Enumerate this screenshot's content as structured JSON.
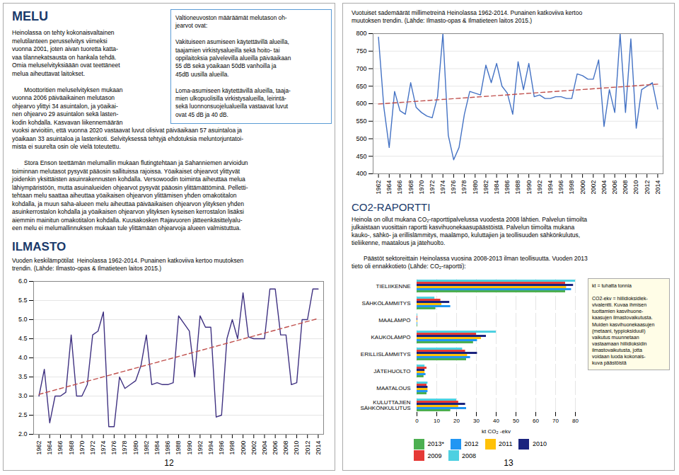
{
  "chart_data": [
    {
      "type": "line",
      "title": "Vuoden keskilämpötilat  Heinolassa 1962-2014. Punainen katkoviiva kertoo muutoksen\ntrendin. (Lähde: Ilmasto-opas & Ilmatieteen laitos 2015.)",
      "annotations": [
        "MELU",
        "Heinolassa on tehty kokonaisvaltainen\nmelutilanteen perusselvitys viimeksi\nvuonna 2001, joten aivan tuoretta katta-\nvaa tilannekatsausta on hankala tehdä.\nOmia meluselvityksiäään ovat teettäneet\nmelua aiheuttavat laitokset.\n​\n  Moottoritien meluselvityksen mukaan\nvuonna 2006 päiväaikainen melutason\nohjearvo ylittyi 34 asuintalon, ja yöaikai-\nnen ohjearvo 29 asuintalon sekä lasten-\nkodin kohdalla. Kasvavan liikennemäärän\nvuoksi arvioitiin, että vuonna 2020 vastaavat luvut olisivat päiväaikaan 57 asuintaloa ja\nyöaikaan 33 asuintaloa ja lastenkoti. Selvityksessä tehtyjä ehdotuksia meluntorjuntatoi-\nmista ei suurelta osin ole vielä toteutettu.\n​\n  Stora Enson teettämän melumallin mukaan flutingtehtaan ja Sahanniemen arvioidun\ntoiminnan melutasot pysyvät pääosin sallituissa rajoissa. Yöaikaiset ohjearvot ylittyvät\njoidenkin yksittäisten asuinrakennusten kohdalla. ​Versowoodin toiminta aiheuttaa melua\nlähiympäristöön, mutta asuinalueiden ohjearvot pysyvät pääosin ylittämättöminä. Pelletti-\ntehtaan melu saattaa aiheuttaa yöaikaisen ohjearvon ylittämisen yhden omakotitalon\nkohdalla, ja muun saha-alueen melu aiheuttaa päiväaikaisen ohjearvon ylityksen yhden\nasuinkerrostalon kohdalla ja yöaikaisen ohjearvon ylityksen kyseisen kerrostalon lisäksi\naiemmin mainitun omakotitalon kohdalla. ​Kuusakosken Rajavuoren jätteenkäsittelyalu-\neen melu ei melumallinnuksen mukaan tule ylittämään ohjearvoja alueen valmistuttua.",
        "Valtioneuvoston määräämät melutason oh-\njearvot ovat:\n​\nVakituiseen asumiseen käytettävillä alueilla,\ntaajamien virkistysalueilla sekä hoito- tai\noppilaitoksia palvelevilla alueilla päiväaikaan\n55 dB sekä yöaikaan 50dB vanhoilla ja\n45dB uusilla alueilla.\n​\nLoma-asumiseen käytettävillä alueilla, taaja-\nmien ulkopuolisilla virkistysalueilla, leirintä-\nsekä luonnonsuojelualueilla vastaavat luvut\novat 45 dB ja 40 dB.",
        "ILMASTO",
        "12"
      ],
      "x": [
        1962,
        1963,
        1964,
        1965,
        1966,
        1967,
        1968,
        1969,
        1970,
        1971,
        1972,
        1973,
        1974,
        1975,
        1976,
        1977,
        1978,
        1979,
        1980,
        1981,
        1982,
        1983,
        1984,
        1985,
        1986,
        1987,
        1988,
        1989,
        1990,
        1991,
        1992,
        1993,
        1994,
        1995,
        1996,
        1997,
        1998,
        1999,
        2000,
        2001,
        2002,
        2003,
        2004,
        2005,
        2006,
        2007,
        2008,
        2009,
        2010,
        2011,
        2012,
        2013,
        2014
      ],
      "series": [
        {
          "color": "#3F3181",
          "values": [
            3.0,
            3.7,
            2.3,
            3.0,
            3.0,
            3.1,
            4.6,
            3.0,
            3.0,
            3.3,
            4.6,
            4.7,
            5.2,
            2.2,
            2.2,
            3.5,
            3.2,
            3.3,
            3.4,
            3.8,
            4.6,
            3.3,
            3.35,
            3.3,
            3.3,
            3.35,
            5.1,
            4.9,
            4.7,
            3.5,
            5.1,
            4.8,
            4.8,
            2.45,
            2.5,
            4.5,
            5.0,
            4.5,
            5.7,
            4.55,
            4.5,
            4.5,
            4.5,
            5.8,
            5.8,
            4.6,
            4.6,
            3.3,
            3.35,
            5.0,
            5.0,
            5.8,
            5.8
          ]
        },
        {
          "color": "#C0504D",
          "line_style": "dashed",
          "x": [
            1962,
            2014
          ],
          "values": [
            3.0447,
            5.0289
          ]
        }
      ],
      "xlim": [
        1961,
        2015
      ],
      "xticks": [
        1962,
        1964,
        1966,
        1968,
        1970,
        1972,
        1974,
        1976,
        1978,
        1980,
        1982,
        1984,
        1986,
        1988,
        1990,
        1992,
        1994,
        1996,
        1998,
        2000,
        2002,
        2004,
        2006,
        2008,
        2010,
        2012,
        2014
      ],
      "ylim": [
        2.0,
        6.0
      ],
      "yticks": [
        {
          "value": 2.0,
          "label": "2.0"
        },
        {
          "value": 2.5,
          "label": "2.5"
        },
        {
          "value": 3.0,
          "label": "3.0"
        },
        {
          "value": 3.5,
          "label": "3.5"
        },
        {
          "value": 4.0,
          "label": "4.0"
        },
        {
          "value": 4.5,
          "label": "4.5"
        },
        {
          "value": 5.0,
          "label": "5.0"
        },
        {
          "value": 5.5,
          "label": "5.5"
        },
        {
          "value": 6.0,
          "label": "6.0"
        }
      ],
      "grid": "y"
    },
    {
      "type": "line",
      "title": "Vuotuiset sademäärät millimetreinä Heinolassa 1962-2014. Punainen katkoviiva kertoo\nmuutoksen trendin. (Lähde: Ilmasto-opas & Ilmatieteen laitos 2015.)",
      "annotations": [
        "13"
      ],
      "x": [
        1962,
        1963,
        1964,
        1965,
        1966,
        1967,
        1968,
        1969,
        1970,
        1971,
        1972,
        1973,
        1974,
        1975,
        1976,
        1977,
        1978,
        1979,
        1980,
        1981,
        1982,
        1983,
        1984,
        1985,
        1986,
        1987,
        1988,
        1989,
        1990,
        1991,
        1992,
        1993,
        1994,
        1995,
        1996,
        1997,
        1998,
        1999,
        2000,
        2001,
        2002,
        2003,
        2004,
        2005,
        2006,
        2007,
        2008,
        2009,
        2010,
        2011,
        2012,
        2013,
        2014
      ],
      "series": [
        {
          "color": "#4472C4",
          "values": [
            790,
            590,
            475,
            635,
            580,
            570,
            660,
            590,
            575,
            565,
            560,
            620,
            800,
            510,
            440,
            475,
            570,
            635,
            630,
            625,
            710,
            660,
            715,
            650,
            630,
            570,
            720,
            640,
            715,
            620,
            625,
            615,
            615,
            620,
            620,
            615,
            615,
            685,
            680,
            670,
            670,
            725,
            535,
            640,
            575,
            800,
            575,
            785,
            530,
            640,
            650,
            660,
            585
          ]
        },
        {
          "color": "#C0504D",
          "line_style": "dashed",
          "x": [
            1962,
            2014
          ],
          "values": [
            599.1719,
            655.7337
          ]
        }
      ],
      "xlim": [
        1961,
        2015
      ],
      "xticks": [
        1962,
        1964,
        1966,
        1968,
        1970,
        1972,
        1974,
        1976,
        1978,
        1980,
        1982,
        1984,
        1986,
        1988,
        1990,
        1992,
        1994,
        1996,
        1998,
        2000,
        2002,
        2004,
        2006,
        2008,
        2010,
        2012,
        2014
      ],
      "ylim": [
        400,
        800
      ],
      "yticks": [
        400,
        450,
        500,
        550,
        600,
        650,
        700,
        750,
        800
      ],
      "grid": "y"
    },
    {
      "type": "bar",
      "orientation": "horizontal",
      "title": "CO2-RAPORTTI",
      "subtitle": "Heinola on ollut mukana CO₂-raporttipalvelussa vuodesta 2008 lähtien. Palvelun tiimoilta\njulkaistaan vuosittain raportti kasvihuonekaasupäästöistä. Palvelun tiimoilta mukana\nkauko-, sähkö- ja erillislämmitys, maalämpö, kuluttajien ja teollisuuden sähkönkulutus,\ntieliikenne, maatalous ja jätehuolto.\n​\n  Päästöt sektoreittain Heinolassa vuosina 2008-2013 ilman teollisuutta. Vuoden 2013\ntieto oli ennakkotieto (Lähde: CO₂-raportti):",
      "xlabel": "kt CO₂ -ekv",
      "annotations": [
        "kt = tuhatta tonnia\n​\nCO2-ekv = hiilidioksidiek-\nvivalentti. Kuvaa ihmisen\ntuottamien kasvihuone-\nkaasujen ilmastovaikutusta.\nMuiden kasvihuonekaasujen\n(metaani, typpioksiduuli)\nvaikutus muunnetaan\nvastaamaan hiilidioksidin\nilmastovaikutusta, jotta\nvoidaan luoda kokonais-\nkuva päästöistä"
      ],
      "categories": [
        "KULUTTAJIEN\nSÄHKÖNKULUTUS",
        "MAATALOUS",
        "JÄTEHUOLTO",
        "ERILLISLÄMMITYS",
        "KAUKOLÄMPÖ",
        "MAALÄMPÖ",
        "SÄHKÖLÄMMITYS",
        "TIELIIKENNE"
      ],
      "series": [
        {
          "name": "2013*",
          "color": "#4CAF50",
          "values": [
            17.0,
            5.0,
            3.5,
            25.0,
            28.5,
            0.3,
            9.5,
            75.0
          ]
        },
        {
          "name": "2012",
          "color": "#2196F3",
          "values": [
            25.0,
            5.5,
            4.5,
            27.0,
            30.5,
            0.3,
            17.0,
            78.0
          ]
        },
        {
          "name": "2011",
          "color": "#FFC107",
          "values": [
            21.0,
            5.5,
            4.0,
            25.5,
            32.5,
            0.3,
            12.5,
            75.5
          ]
        },
        {
          "name": "2010",
          "color": "#1A237E",
          "values": [
            24.5,
            5.5,
            4.0,
            30.5,
            35.0,
            0.3,
            16.5,
            79.0
          ]
        },
        {
          "name": "2009",
          "color": "#E53935",
          "values": [
            21.0,
            5.0,
            5.0,
            24.5,
            30.0,
            0.3,
            12.0,
            75.0
          ]
        },
        {
          "name": "2008",
          "color": "#4DD0E1",
          "values": [
            20.0,
            5.5,
            4.0,
            23.0,
            40.0,
            0.3,
            9.0,
            80.0
          ]
        }
      ],
      "xlim": [
        0,
        80
      ],
      "xticks": [
        0,
        10,
        20,
        30,
        40,
        50,
        60,
        70,
        80
      ],
      "grid": "x",
      "legend": "bottom"
    }
  ]
}
